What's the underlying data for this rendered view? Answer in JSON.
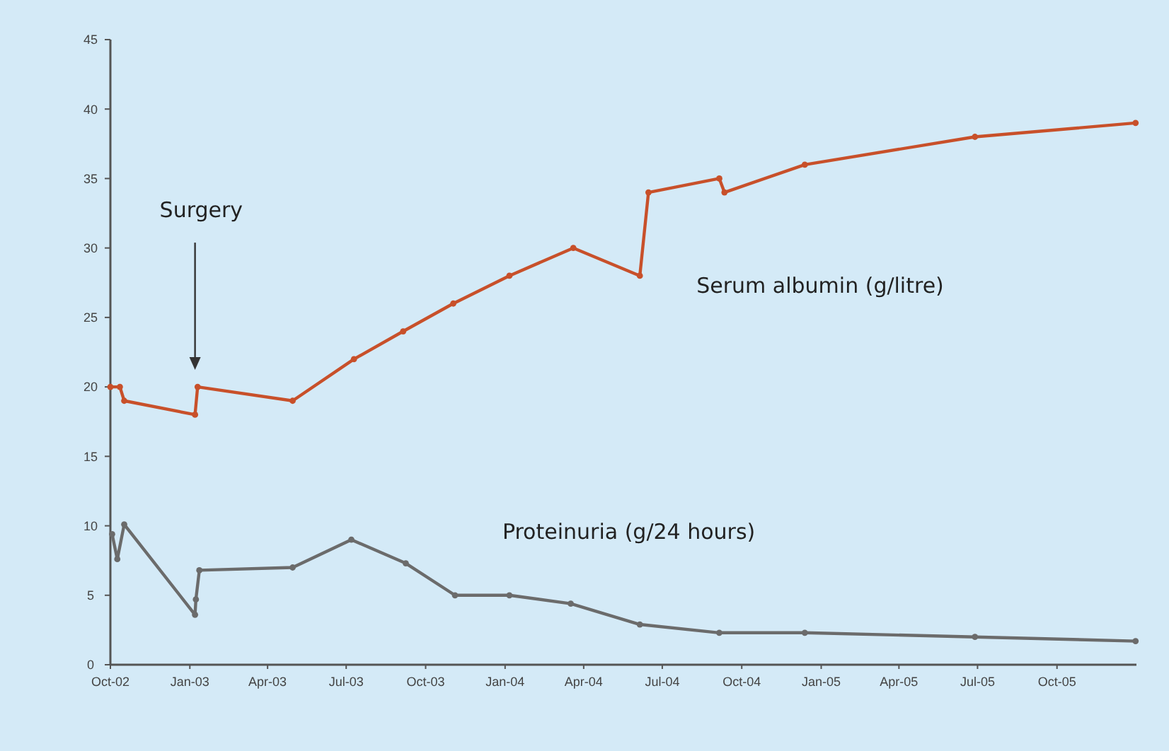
{
  "chart_data": {
    "type": "line",
    "marker": "circle",
    "line_style": "solid",
    "grid": false,
    "xlim": [
      "2002-10-01",
      "2006-01-01"
    ],
    "xticks": [
      {
        "value": "2002-10-01",
        "label": "Oct-02"
      },
      {
        "value": "2003-01-01",
        "label": "Jan-03"
      },
      {
        "value": "2003-04-01",
        "label": "Apr-03"
      },
      {
        "value": "2003-07-01",
        "label": "Jul-03"
      },
      {
        "value": "2003-10-01",
        "label": "Oct-03"
      },
      {
        "value": "2004-01-01",
        "label": "Jan-04"
      },
      {
        "value": "2004-04-01",
        "label": "Apr-04"
      },
      {
        "value": "2004-07-01",
        "label": "Jul-04"
      },
      {
        "value": "2004-10-01",
        "label": "Oct-04"
      },
      {
        "value": "2005-01-01",
        "label": "Jan-05"
      },
      {
        "value": "2005-04-01",
        "label": "Apr-05"
      },
      {
        "value": "2005-07-01",
        "label": "Jul-05"
      },
      {
        "value": "2005-10-01",
        "label": "Oct-05"
      }
    ],
    "ylim": [
      0,
      45
    ],
    "yticks": [
      0,
      5,
      10,
      15,
      20,
      25,
      30,
      35,
      40,
      45
    ],
    "annotations": [
      "Surgery"
    ],
    "series": [
      {
        "name": "Serum albumin (g/litre)",
        "color": "#c8502a",
        "x": [
          "2002-10-01",
          "2002-10-12",
          "2002-10-17",
          "2003-01-07",
          "2003-01-10",
          "2003-04-30",
          "2003-07-10",
          "2003-09-05",
          "2003-11-02",
          "2004-01-06",
          "2004-03-20",
          "2004-06-05",
          "2004-06-15",
          "2004-09-05",
          "2004-09-11",
          "2004-12-13",
          "2005-06-28",
          "2005-12-31"
        ],
        "values": [
          20,
          20,
          19,
          18,
          20,
          19,
          22,
          24,
          26,
          28,
          30,
          28,
          34,
          35,
          34,
          36,
          38,
          39
        ]
      },
      {
        "name": "Proteinuria (g/24 hours)",
        "color": "#6b6b6b",
        "x": [
          "2002-10-03",
          "2002-10-09",
          "2002-10-17",
          "2003-01-07",
          "2003-01-08",
          "2003-01-12",
          "2003-04-30",
          "2003-07-07",
          "2003-09-08",
          "2003-11-04",
          "2004-01-06",
          "2004-03-17",
          "2004-06-05",
          "2004-09-05",
          "2004-12-13",
          "2005-06-28",
          "2005-12-31"
        ],
        "values": [
          9.4,
          7.6,
          10.1,
          3.6,
          4.7,
          6.8,
          7.0,
          9.0,
          7.3,
          5,
          5,
          4.4,
          2.9,
          2.3,
          2.3,
          2.0,
          1.7
        ]
      }
    ]
  }
}
